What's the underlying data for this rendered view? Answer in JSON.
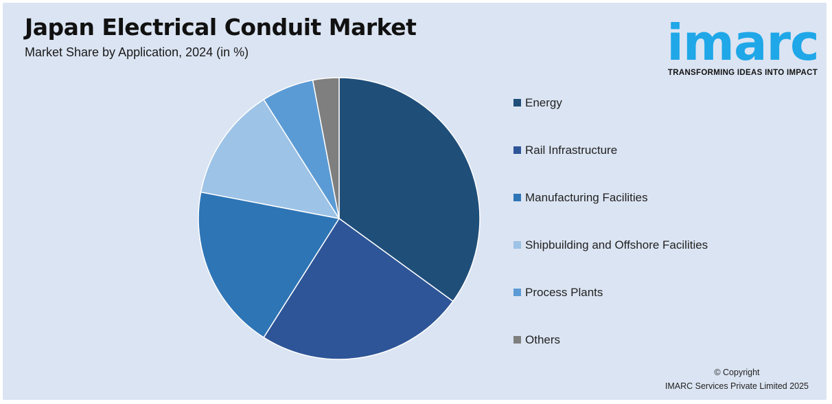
{
  "header": {
    "title": "Japan Electrical Conduit Market",
    "subtitle": "Market Share by Application, 2024 (in %)"
  },
  "logo": {
    "word": "imarc",
    "tagline": "TRANSFORMING IDEAS INTO IMPACT",
    "color": "#1fa7e8"
  },
  "chart_data": {
    "type": "pie",
    "title": "Japan Electrical Conduit Market",
    "subtitle": "Market Share by Application, 2024 (in %)",
    "legend_position": "right",
    "start_angle_deg": 0,
    "direction": "clockwise",
    "slices": [
      {
        "label": "Energy",
        "value": 35,
        "color": "#1f4e79"
      },
      {
        "label": "Rail Infrastructure",
        "value": 24,
        "color": "#2e5597"
      },
      {
        "label": "Manufacturing Facilities",
        "value": 19,
        "color": "#2e75b6"
      },
      {
        "label": "Shipbuilding and Offshore Facilities",
        "value": 13,
        "color": "#9dc3e6"
      },
      {
        "label": "Process Plants",
        "value": 6,
        "color": "#5b9bd5"
      },
      {
        "label": "Others",
        "value": 3,
        "color": "#7f7f7f"
      }
    ]
  },
  "footer": {
    "copyright_line1": "© Copyright",
    "copyright_line2": "IMARC Services Private Limited 2025"
  }
}
